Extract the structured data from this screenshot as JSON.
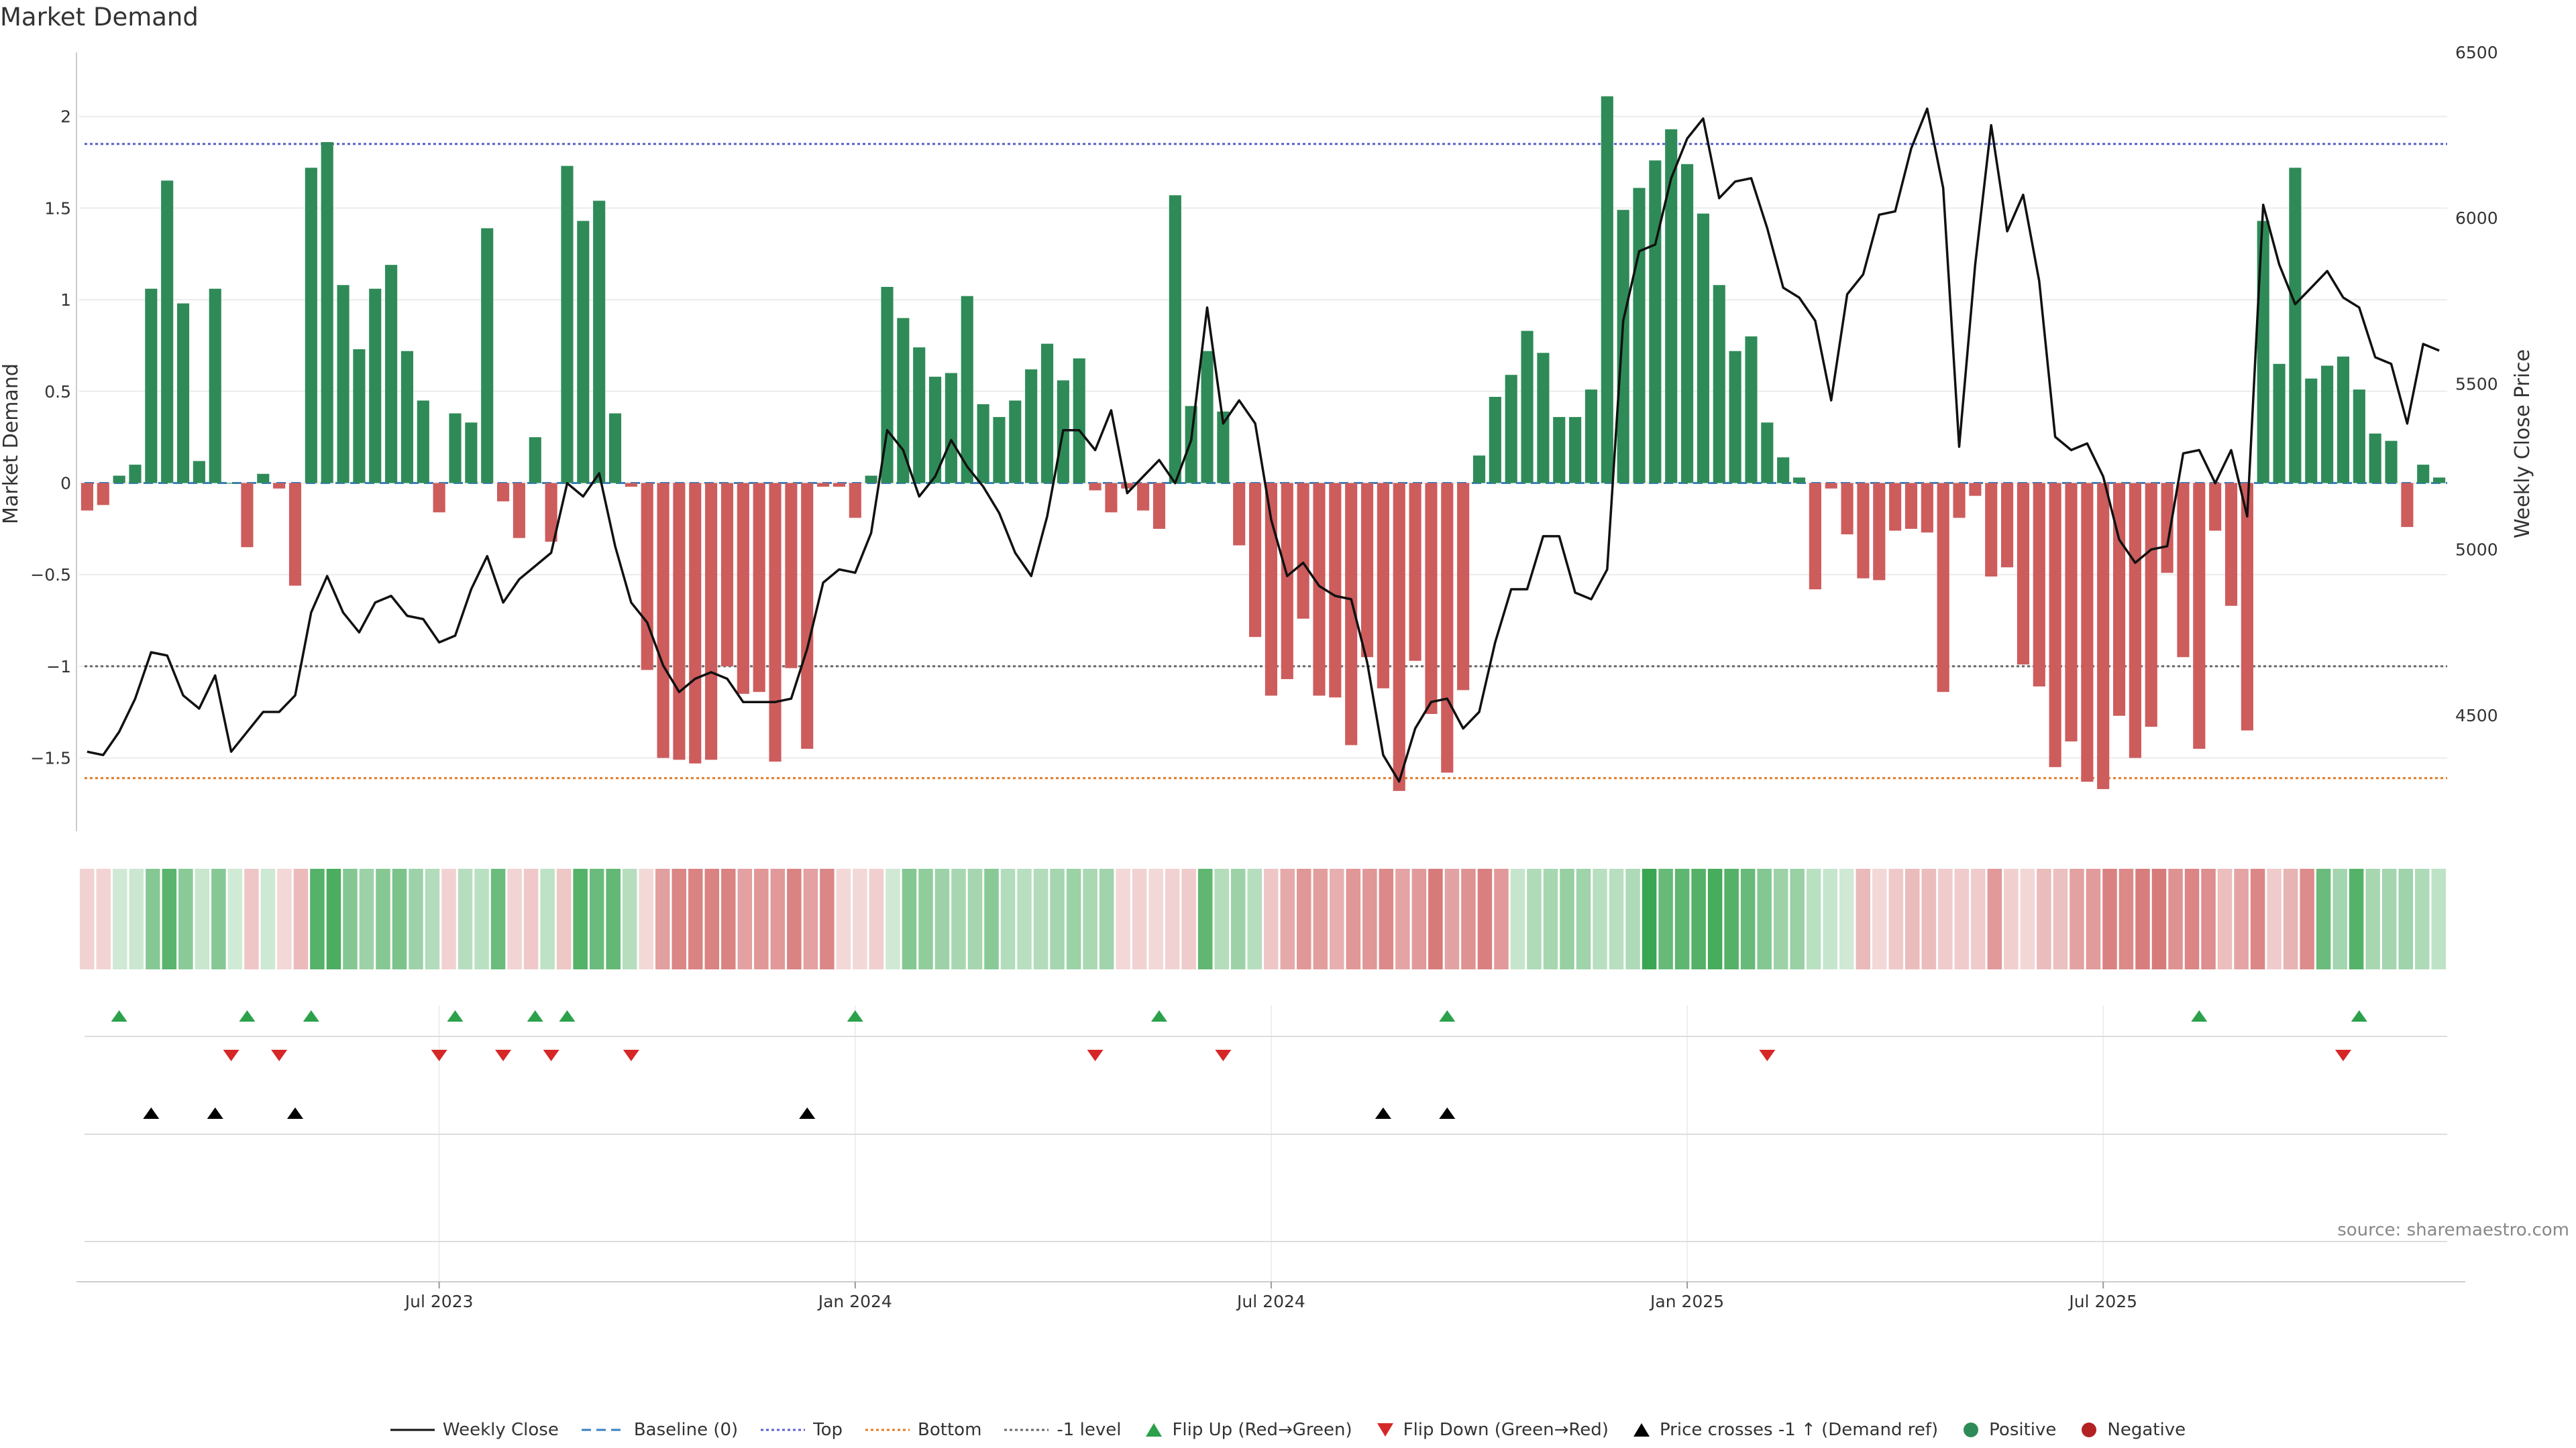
{
  "title": "Market Demand",
  "source": "source: sharemaestro.com",
  "chart_data": {
    "type": "bar",
    "title": "Market Demand",
    "ylabel": "Market Demand",
    "y2label": "Weekly Close Price",
    "ylim": [
      -1.9,
      2.35
    ],
    "y2lim": [
      4150,
      6500
    ],
    "yticks": [
      2,
      1.5,
      1,
      0.5,
      0,
      -0.5,
      -1,
      -1.5
    ],
    "ytick_labels": [
      "2",
      "1.5",
      "1",
      "0.5",
      "0",
      "−0.5",
      "−1",
      "−1.5"
    ],
    "y2ticks": [
      6500,
      6000,
      5500,
      5000,
      4500
    ],
    "y2tick_labels": [
      "6500",
      "6000",
      "5500",
      "5000",
      "4500"
    ],
    "xtick_index": [
      22,
      48,
      74,
      100,
      126
    ],
    "xtick_labels": [
      "Jul 2023",
      "Jan 2024",
      "Jul 2024",
      "Jan 2025",
      "Jul 2025"
    ],
    "levels": {
      "top": 1.85,
      "bottom": -1.61,
      "minus_one": -1.0,
      "baseline": 0
    },
    "colors": {
      "positive": "#2e8b57",
      "negative": "#cd5c5c",
      "top_line": "#5a5fcf",
      "bottom_line": "#e07b20",
      "minus_one_line": "#666666",
      "baseline": "#3a7fbf",
      "close": "#111111",
      "flip_up": "#2aa14a",
      "flip_down": "#d62728",
      "cross": "#000000"
    },
    "demand": [
      -0.15,
      -0.12,
      0.04,
      0.1,
      1.06,
      1.65,
      0.98,
      0.12,
      1.06,
      0,
      -0.35,
      0.05,
      -0.03,
      -0.56,
      1.72,
      1.86,
      1.08,
      0.73,
      1.06,
      1.19,
      0.72,
      0.45,
      -0.16,
      0.38,
      0.33,
      1.39,
      -0.1,
      -0.3,
      0.25,
      -0.32,
      1.73,
      1.43,
      1.54,
      0.38,
      -0.02,
      -1.02,
      -1.5,
      -1.51,
      -1.53,
      -1.51,
      -1.0,
      -1.15,
      -1.14,
      -1.52,
      -1.01,
      -1.45,
      -0.02,
      -0.02,
      -0.19,
      0.04,
      1.07,
      0.9,
      0.74,
      0.58,
      0.6,
      1.02,
      0.43,
      0.36,
      0.45,
      0.62,
      0.76,
      0.56,
      0.68,
      -0.04,
      -0.16,
      -0.03,
      -0.15,
      -0.25,
      1.57,
      0.42,
      0.72,
      0.39,
      -0.34,
      -0.84,
      -1.16,
      -1.07,
      -0.74,
      -1.16,
      -1.17,
      -1.43,
      -0.95,
      -1.12,
      -1.68,
      -0.97,
      -1.26,
      -1.58,
      -1.13,
      0.15,
      0.47,
      0.59,
      0.83,
      0.71,
      0.36,
      0.36,
      0.51,
      2.11,
      1.49,
      1.61,
      1.76,
      1.93,
      1.74,
      1.47,
      1.08,
      0.72,
      0.8,
      0.33,
      0.14,
      0.03,
      -0.58,
      -0.03,
      -0.28,
      -0.52,
      -0.53,
      -0.26,
      -0.25,
      -0.27,
      -1.14,
      -0.19,
      -0.07,
      -0.51,
      -0.46,
      -0.99,
      -1.11,
      -1.55,
      -1.41,
      -1.63,
      -1.67,
      -1.27,
      -1.5,
      -1.33,
      -0.49,
      -0.95,
      -1.45,
      -0.26,
      -0.67,
      -1.35,
      1.43,
      0.65,
      1.72,
      0.57,
      0.64,
      0.69,
      0.51,
      0.27,
      0.23,
      -0.24,
      0.1,
      0.03
    ],
    "close": [
      4390,
      4380,
      4450,
      4550,
      4690,
      4680,
      4560,
      4520,
      4620,
      4390,
      4450,
      4510,
      4510,
      4560,
      4810,
      4920,
      4810,
      4750,
      4840,
      4860,
      4800,
      4790,
      4720,
      4740,
      4880,
      4980,
      4840,
      4910,
      4950,
      4990,
      5200,
      5160,
      5230,
      5010,
      4840,
      4780,
      4650,
      4570,
      4610,
      4630,
      4610,
      4540,
      4540,
      4540,
      4550,
      4700,
      4900,
      4940,
      4930,
      5050,
      5360,
      5300,
      5160,
      5220,
      5330,
      5250,
      5190,
      5110,
      4990,
      4920,
      5100,
      5360,
      5360,
      5300,
      5420,
      5170,
      5220,
      5270,
      5200,
      5330,
      5730,
      5380,
      5450,
      5380,
      5090,
      4920,
      4960,
      4890,
      4860,
      4850,
      4660,
      4380,
      4300,
      4460,
      4540,
      4550,
      4460,
      4510,
      4720,
      4880,
      4880,
      5040,
      5040,
      4870,
      4850,
      4940,
      5690,
      5900,
      5920,
      6120,
      6240,
      6300,
      6060,
      6110,
      6120,
      5970,
      5790,
      5760,
      5690,
      5450,
      5770,
      5830,
      6010,
      6020,
      6210,
      6330,
      6090,
      5310,
      5860,
      6280,
      5960,
      6070,
      5810,
      5340,
      5300,
      5320,
      5220,
      5030,
      4960,
      5000,
      5010,
      5290,
      5300,
      5200,
      5300,
      5100,
      6040,
      5860,
      5740,
      5790,
      5840,
      5760,
      5730,
      5580,
      5560,
      5380,
      5620,
      5600
    ],
    "flip_up_index": [
      2,
      10,
      14,
      23,
      28,
      30,
      48,
      67,
      85,
      132,
      142
    ],
    "flip_down_index": [
      9,
      12,
      22,
      26,
      29,
      34,
      63,
      71,
      105,
      141
    ],
    "price_cross_index": [
      4,
      8,
      13,
      45,
      81,
      85
    ],
    "heat_strips": 144,
    "legend": [
      "Weekly Close",
      "Baseline (0)",
      "Top",
      "Bottom",
      "-1 level",
      "Flip Up (Red→Green)",
      "Flip Down (Green→Red)",
      "Price crosses -1 ↑ (Demand ref)",
      "Positive",
      "Negative"
    ]
  }
}
